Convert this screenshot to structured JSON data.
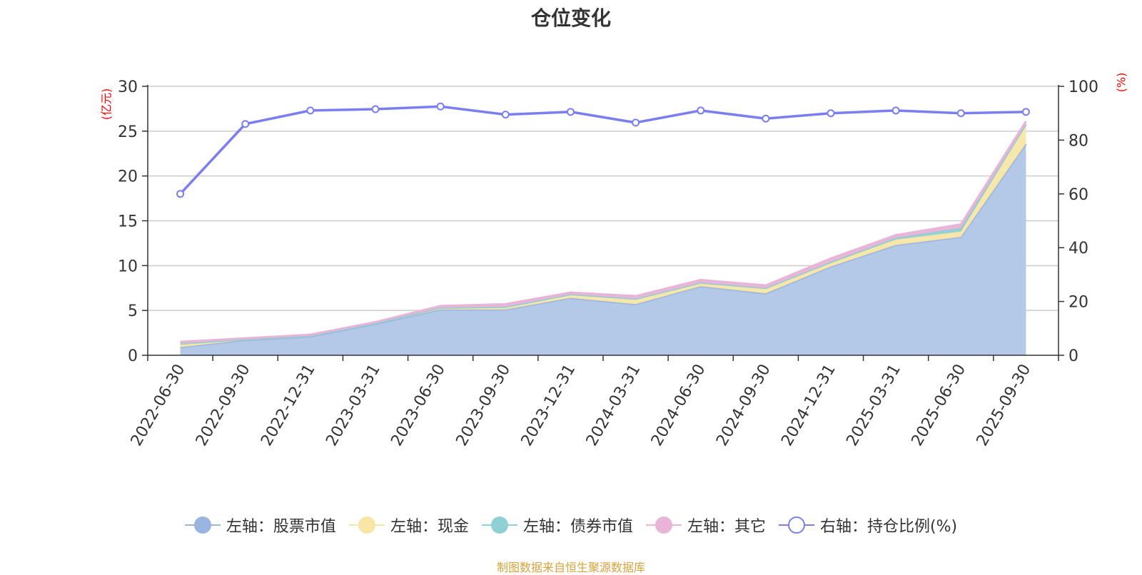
{
  "title": "仓位变化",
  "source": "制图数据来自恒生聚源数据库",
  "left_axis_unit": "(亿元)",
  "right_axis_unit": "(%)",
  "colors": {
    "stock": "#9ab5e0",
    "stock_fill": "#b4c9e8",
    "cash": "#f7e6a6",
    "bond": "#8fd0d4",
    "other": "#e8b4d8",
    "ratio": "#7a7ef0",
    "axis_unit": "#ff0000",
    "source": "#d6a33c"
  },
  "legend": [
    {
      "key": "stock",
      "label": "左轴：股票市值",
      "color": "#9ab5e0",
      "hollow": false
    },
    {
      "key": "cash",
      "label": "左轴：现金",
      "color": "#f7e6a6",
      "hollow": false
    },
    {
      "key": "bond",
      "label": "左轴：债券市值",
      "color": "#8fd0d4",
      "hollow": false
    },
    {
      "key": "other",
      "label": "左轴：其它",
      "color": "#e8b4d8",
      "hollow": false
    },
    {
      "key": "ratio",
      "label": "右轴：持仓比例(%)",
      "color": "#7a7ef0",
      "hollow": true
    }
  ],
  "chart_data": {
    "type": "area",
    "title": "仓位变化",
    "categories": [
      "2022-06-30",
      "2022-09-30",
      "2022-12-31",
      "2023-03-31",
      "2023-06-30",
      "2023-09-30",
      "2023-12-31",
      "2024-03-31",
      "2024-06-30",
      "2024-09-30",
      "2024-12-31",
      "2025-03-31",
      "2025-06-30",
      "2025-09-30"
    ],
    "left_axis": {
      "min": 0,
      "max": 30,
      "ticks": [
        0,
        5,
        10,
        15,
        20,
        25,
        30
      ],
      "unit": "(亿元)"
    },
    "right_axis": {
      "min": 0,
      "max": 100,
      "ticks": [
        0,
        20,
        40,
        60,
        80,
        100
      ],
      "unit": "(%)"
    },
    "stacked_series": [
      {
        "name": "左轴：股票市值",
        "values": [
          0.9,
          1.7,
          2.1,
          3.5,
          5.1,
          5.1,
          6.4,
          5.7,
          7.7,
          6.9,
          9.9,
          12.3,
          13.2,
          23.6
        ]
      },
      {
        "name": "左轴：现金",
        "values": [
          0.4,
          0.1,
          0.1,
          0.1,
          0.2,
          0.3,
          0.4,
          0.6,
          0.4,
          0.5,
          0.4,
          0.6,
          0.6,
          2.0
        ]
      },
      {
        "name": "左轴：债券市值",
        "values": [
          0.0,
          0.0,
          0.0,
          0.0,
          0.0,
          0.0,
          0.0,
          0.0,
          0.0,
          0.1,
          0.1,
          0.2,
          0.4,
          0.2
        ]
      },
      {
        "name": "左轴：其它",
        "values": [
          0.2,
          0.1,
          0.1,
          0.1,
          0.2,
          0.3,
          0.2,
          0.3,
          0.3,
          0.3,
          0.4,
          0.3,
          0.4,
          0.3
        ]
      }
    ],
    "line_series": {
      "name": "右轴：持仓比例(%)",
      "values": [
        60,
        86,
        91,
        91.5,
        92.5,
        89.5,
        90.5,
        86.5,
        91,
        88,
        90,
        91,
        90,
        90.5
      ]
    },
    "grid": true,
    "legend_position": "bottom"
  }
}
